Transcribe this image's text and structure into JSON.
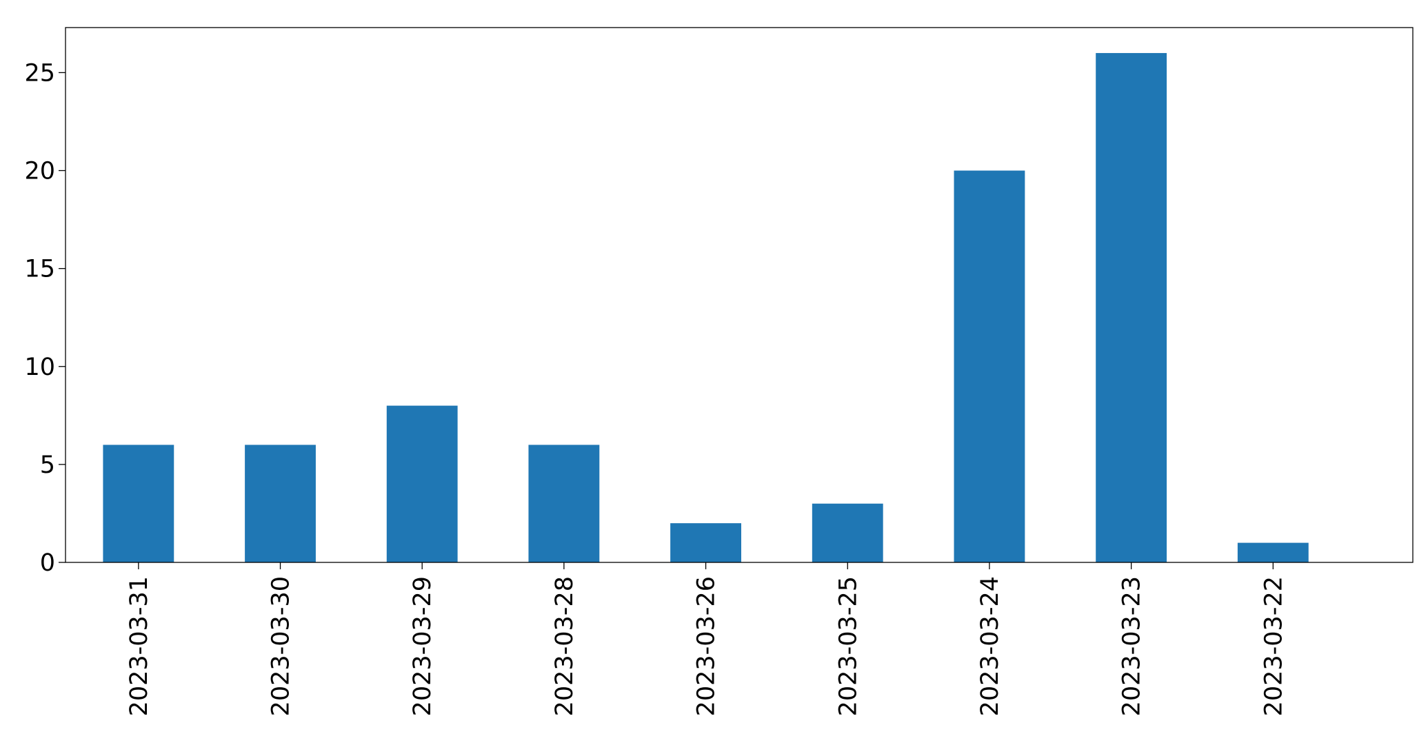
{
  "chart_data": {
    "type": "bar",
    "title": "",
    "xlabel": "",
    "ylabel": "",
    "categories": [
      "2023-03-31",
      "2023-03-30",
      "2023-03-29",
      "2023-03-28",
      "2023-03-26",
      "2023-03-25",
      "2023-03-24",
      "2023-03-23",
      "2023-03-22"
    ],
    "values": [
      6,
      6,
      8,
      6,
      2,
      3,
      20,
      26,
      1
    ],
    "ylim": [
      0,
      27.3
    ],
    "yticks": [
      0,
      5,
      10,
      15,
      20,
      25
    ],
    "bar_color": "#1f77b4",
    "grid": false,
    "legend": false,
    "xtick_rotation_degrees": -90
  }
}
